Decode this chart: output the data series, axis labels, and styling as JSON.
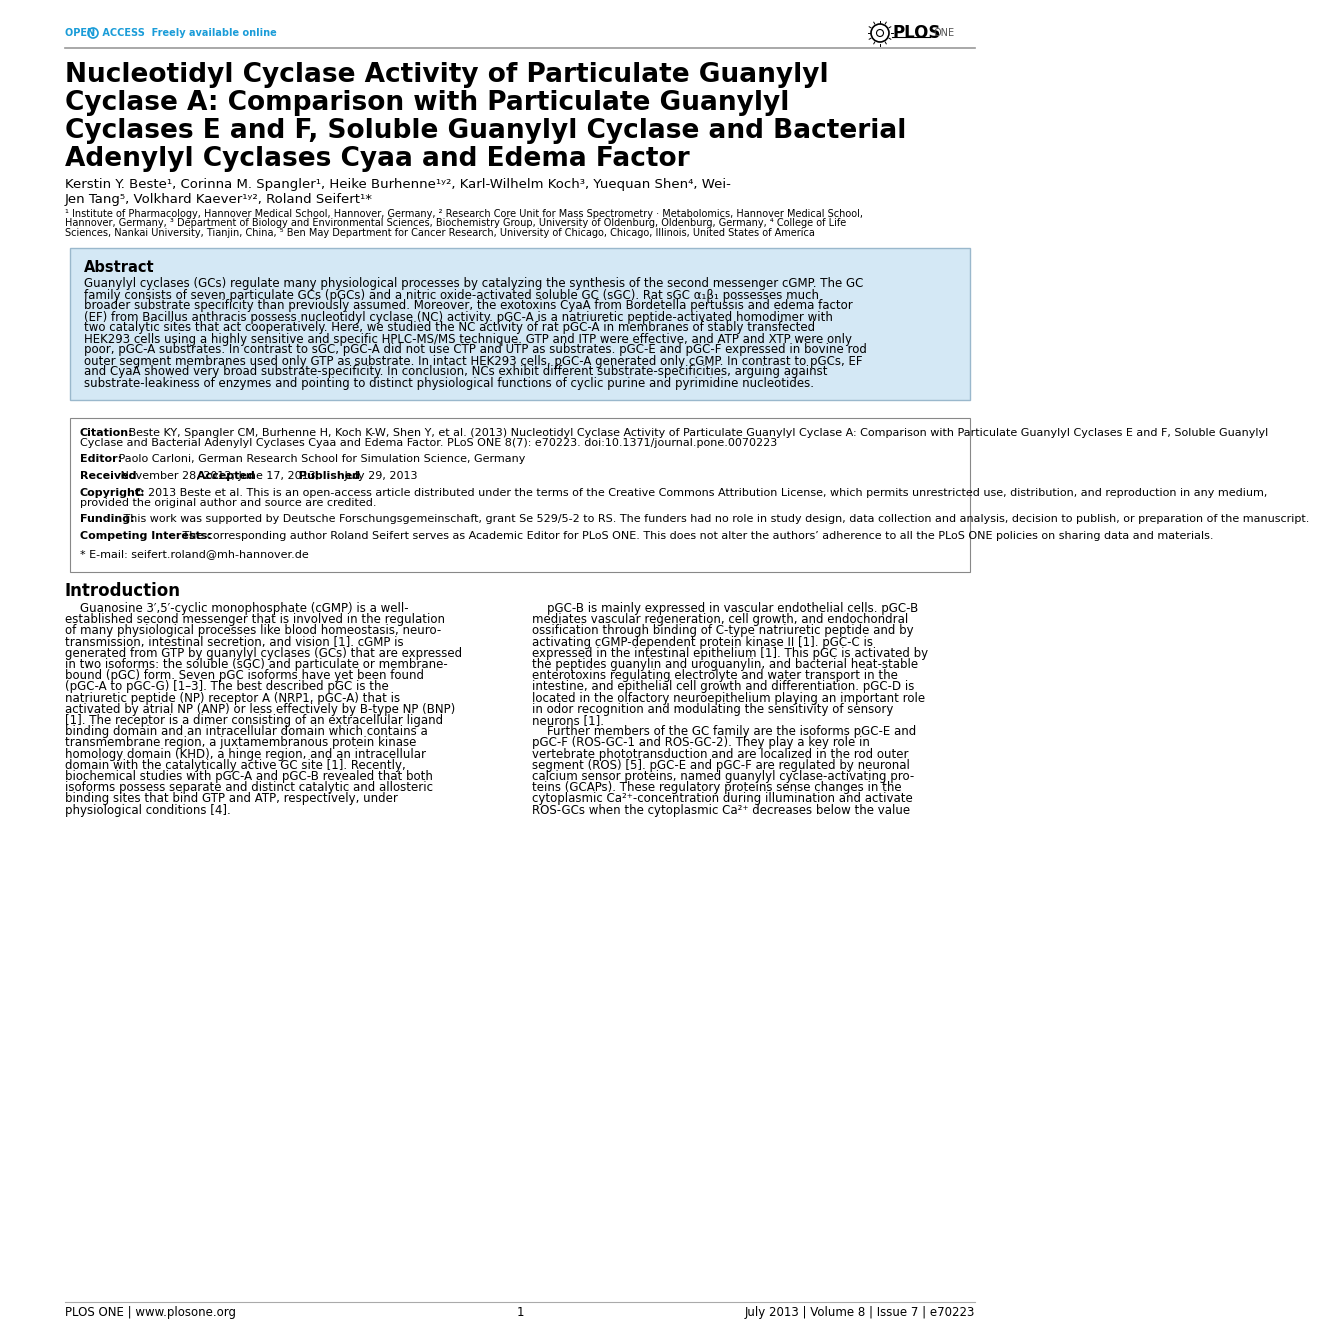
{
  "background_color": "#ffffff",
  "header_line_color": "#888888",
  "open_access_color": "#1a9cd8",
  "title_text": "Nucleotidyl Cyclase Activity of Particulate Guanylyl\nCyclase A: Comparison with Particulate Guanylyl\nCyclases E and F, Soluble Guanylyl Cyclase and Bacterial\nAdenylyl Cyclases Cyaa and Edema Factor",
  "authors_line1": "Kerstin Y. Beste¹, Corinna M. Spangler¹, Heike Burhenne¹ʸ², Karl-Wilhelm Koch³, Yuequan Shen⁴, Wei-",
  "authors_line2": "Jen Tang⁵, Volkhard Kaever¹ʸ², Roland Seifert¹*",
  "affiliations": "¹ Institute of Pharmacology, Hannover Medical School, Hannover, Germany, ² Research Core Unit for Mass Spectrometry · Metabolomics, Hannover Medical School, Hannover, Germany, ³ Department of Biology and Environmental Sciences, Biochemistry Group, University of Oldenburg, Oldenburg, Germany, ⁴ College of Life Sciences, Nankai University, Tianjin, China, ⁵ Ben May Department for Cancer Research, University of Chicago, Chicago, Illinois, United States of America",
  "abstract_bg": "#d4e8f5",
  "abstract_border": "#9ab8cc",
  "abstract_title": "Abstract",
  "abstract_text": "Guanylyl cyclases (GCs) regulate many physiological processes by catalyzing the synthesis of the second messenger cGMP. The GC family consists of seven particulate GCs (pGCs) and a nitric oxide-activated soluble GC (sGC). Rat sGC α₁β₁ possesses much broader substrate specificity than previously assumed. Moreover, the exotoxins CyaA from Bordetella pertussis and edema factor (EF) from Bacillus anthracis possess nucleotidyl cyclase (NC) activity. pGC-A is a natriuretic peptide-activated homodimer with two catalytic sites that act cooperatively. Here, we studied the NC activity of rat pGC-A in membranes of stably transfected HEK293 cells using a highly sensitive and specific HPLC-MS/MS technique. GTP and ITP were effective, and ATP and XTP were only poor, pGC-A substrates. In contrast to sGC, pGC-A did not use CTP and UTP as substrates. pGC-E and pGC-F expressed in bovine rod outer segment membranes used only GTP as substrate. In intact HEK293 cells, pGC-A generated only cGMP. In contrast to pGCs, EF and CyaA showed very broad substrate-specificity. In conclusion, NCs exhibit different substrate-specificities, arguing against substrate-leakiness of enzymes and pointing to distinct physiological functions of cyclic purine and pyrimidine nucleotides.",
  "citation_text": "Beste KY, Spangler CM, Burhenne H, Koch K-W, Shen Y, et al. (2013) Nucleotidyl Cyclase Activity of Particulate Guanylyl Cyclase A: Comparison with Particulate Guanylyl Cyclases E and F, Soluble Guanylyl Cyclase and Bacterial Adenylyl Cyclases Cyaa and Edema Factor. PLoS ONE 8(7): e70223. doi:10.1371/journal.pone.0070223",
  "editor_text": "Paolo Carloni, German Research School for Simulation Science, Germany",
  "received_text": "November 28, 2012;",
  "accepted_text": "June 17, 2013;",
  "published_text": "July 29, 2013",
  "copyright_text": "© 2013 Beste et al. This is an open-access article distributed under the terms of the Creative Commons Attribution License, which permits unrestricted use, distribution, and reproduction in any medium, provided the original author and source are credited.",
  "funding_text": "This work was supported by Deutsche Forschungsgemeinschaft, grant Se 529/5-2 to RS. The funders had no role in study design, data collection and analysis, decision to publish, or preparation of the manuscript.",
  "competing_text": "The corresponding author Roland Seifert serves as Academic Editor for PLoS ONE. This does not alter the authors’ adherence to all the PLoS ONE policies on sharing data and materials.",
  "email_text": "* E-mail: seifert.roland@mh-hannover.de",
  "intro_title": "Introduction",
  "intro_col1": "    Guanosine 3′,5′-cyclic monophosphate (cGMP) is a well-\nestablished second messenger that is involved in the regulation\nof many physiological processes like blood homeostasis, neuro-\ntransmission, intestinal secretion, and vision [1]. cGMP is\ngenerated from GTP by guanylyl cyclases (GCs) that are expressed\nin two isoforms: the soluble (sGC) and particulate or membrane-\nbound (pGC) form. Seven pGC isoforms have yet been found\n(pGC-A to pGC-G) [1–3]. The best described pGC is the\nnatriuretic peptide (NP) receptor A (NRP1, pGC-A) that is\nactivated by atrial NP (ANP) or less effectively by B-type NP (BNP)\n[1]. The receptor is a dimer consisting of an extracellular ligand\nbinding domain and an intracellular domain which contains a\ntransmembrane region, a juxtamembranous protein kinase\nhomology domain (KHD), a hinge region, and an intracellular\ndomain with the catalytically active GC site [1]. Recently,\nbiochemical studies with pGC-A and pGC-B revealed that both\nisoforms possess separate and distinct catalytic and allosteric\nbinding sites that bind GTP and ATP, respectively, under\nphysiological conditions [4].",
  "intro_col2": "    pGC-B is mainly expressed in vascular endothelial cells. pGC-B\nmediates vascular regeneration, cell growth, and endochondral\nossification through binding of C-type natriuretic peptide and by\nactivating cGMP-dependent protein kinase II [1]. pGC-C is\nexpressed in the intestinal epithelium [1]. This pGC is activated by\nthe peptides guanylin and uroguanylin, and bacterial heat-stable\nenterotoxins regulating electrolyte and water transport in the\nintestine, and epithelial cell growth and differentiation. pGC-D is\nlocated in the olfactory neuroepithelium playing an important role\nin odor recognition and modulating the sensitivity of sensory\nneurons [1].\n    Further members of the GC family are the isoforms pGC-E and\npGC-F (ROS-GC-1 and ROS-GC-2). They play a key role in\nvertebrate phototransduction and are localized in the rod outer\nsegment (ROS) [5]. pGC-E and pGC-F are regulated by neuronal\ncalcium sensor proteins, named guanylyl cyclase-activating pro-\nteins (GCAPs). These regulatory proteins sense changes in the\ncytoplasmic Ca²⁺-concentration during illumination and activate\nROS-GCs when the cytoplasmic Ca²⁺ decreases below the value",
  "footer_left": "PLOS ONE | www.plosone.org",
  "footer_mid": "1",
  "footer_right": "July 2013 | Volume 8 | Issue 7 | e70223"
}
